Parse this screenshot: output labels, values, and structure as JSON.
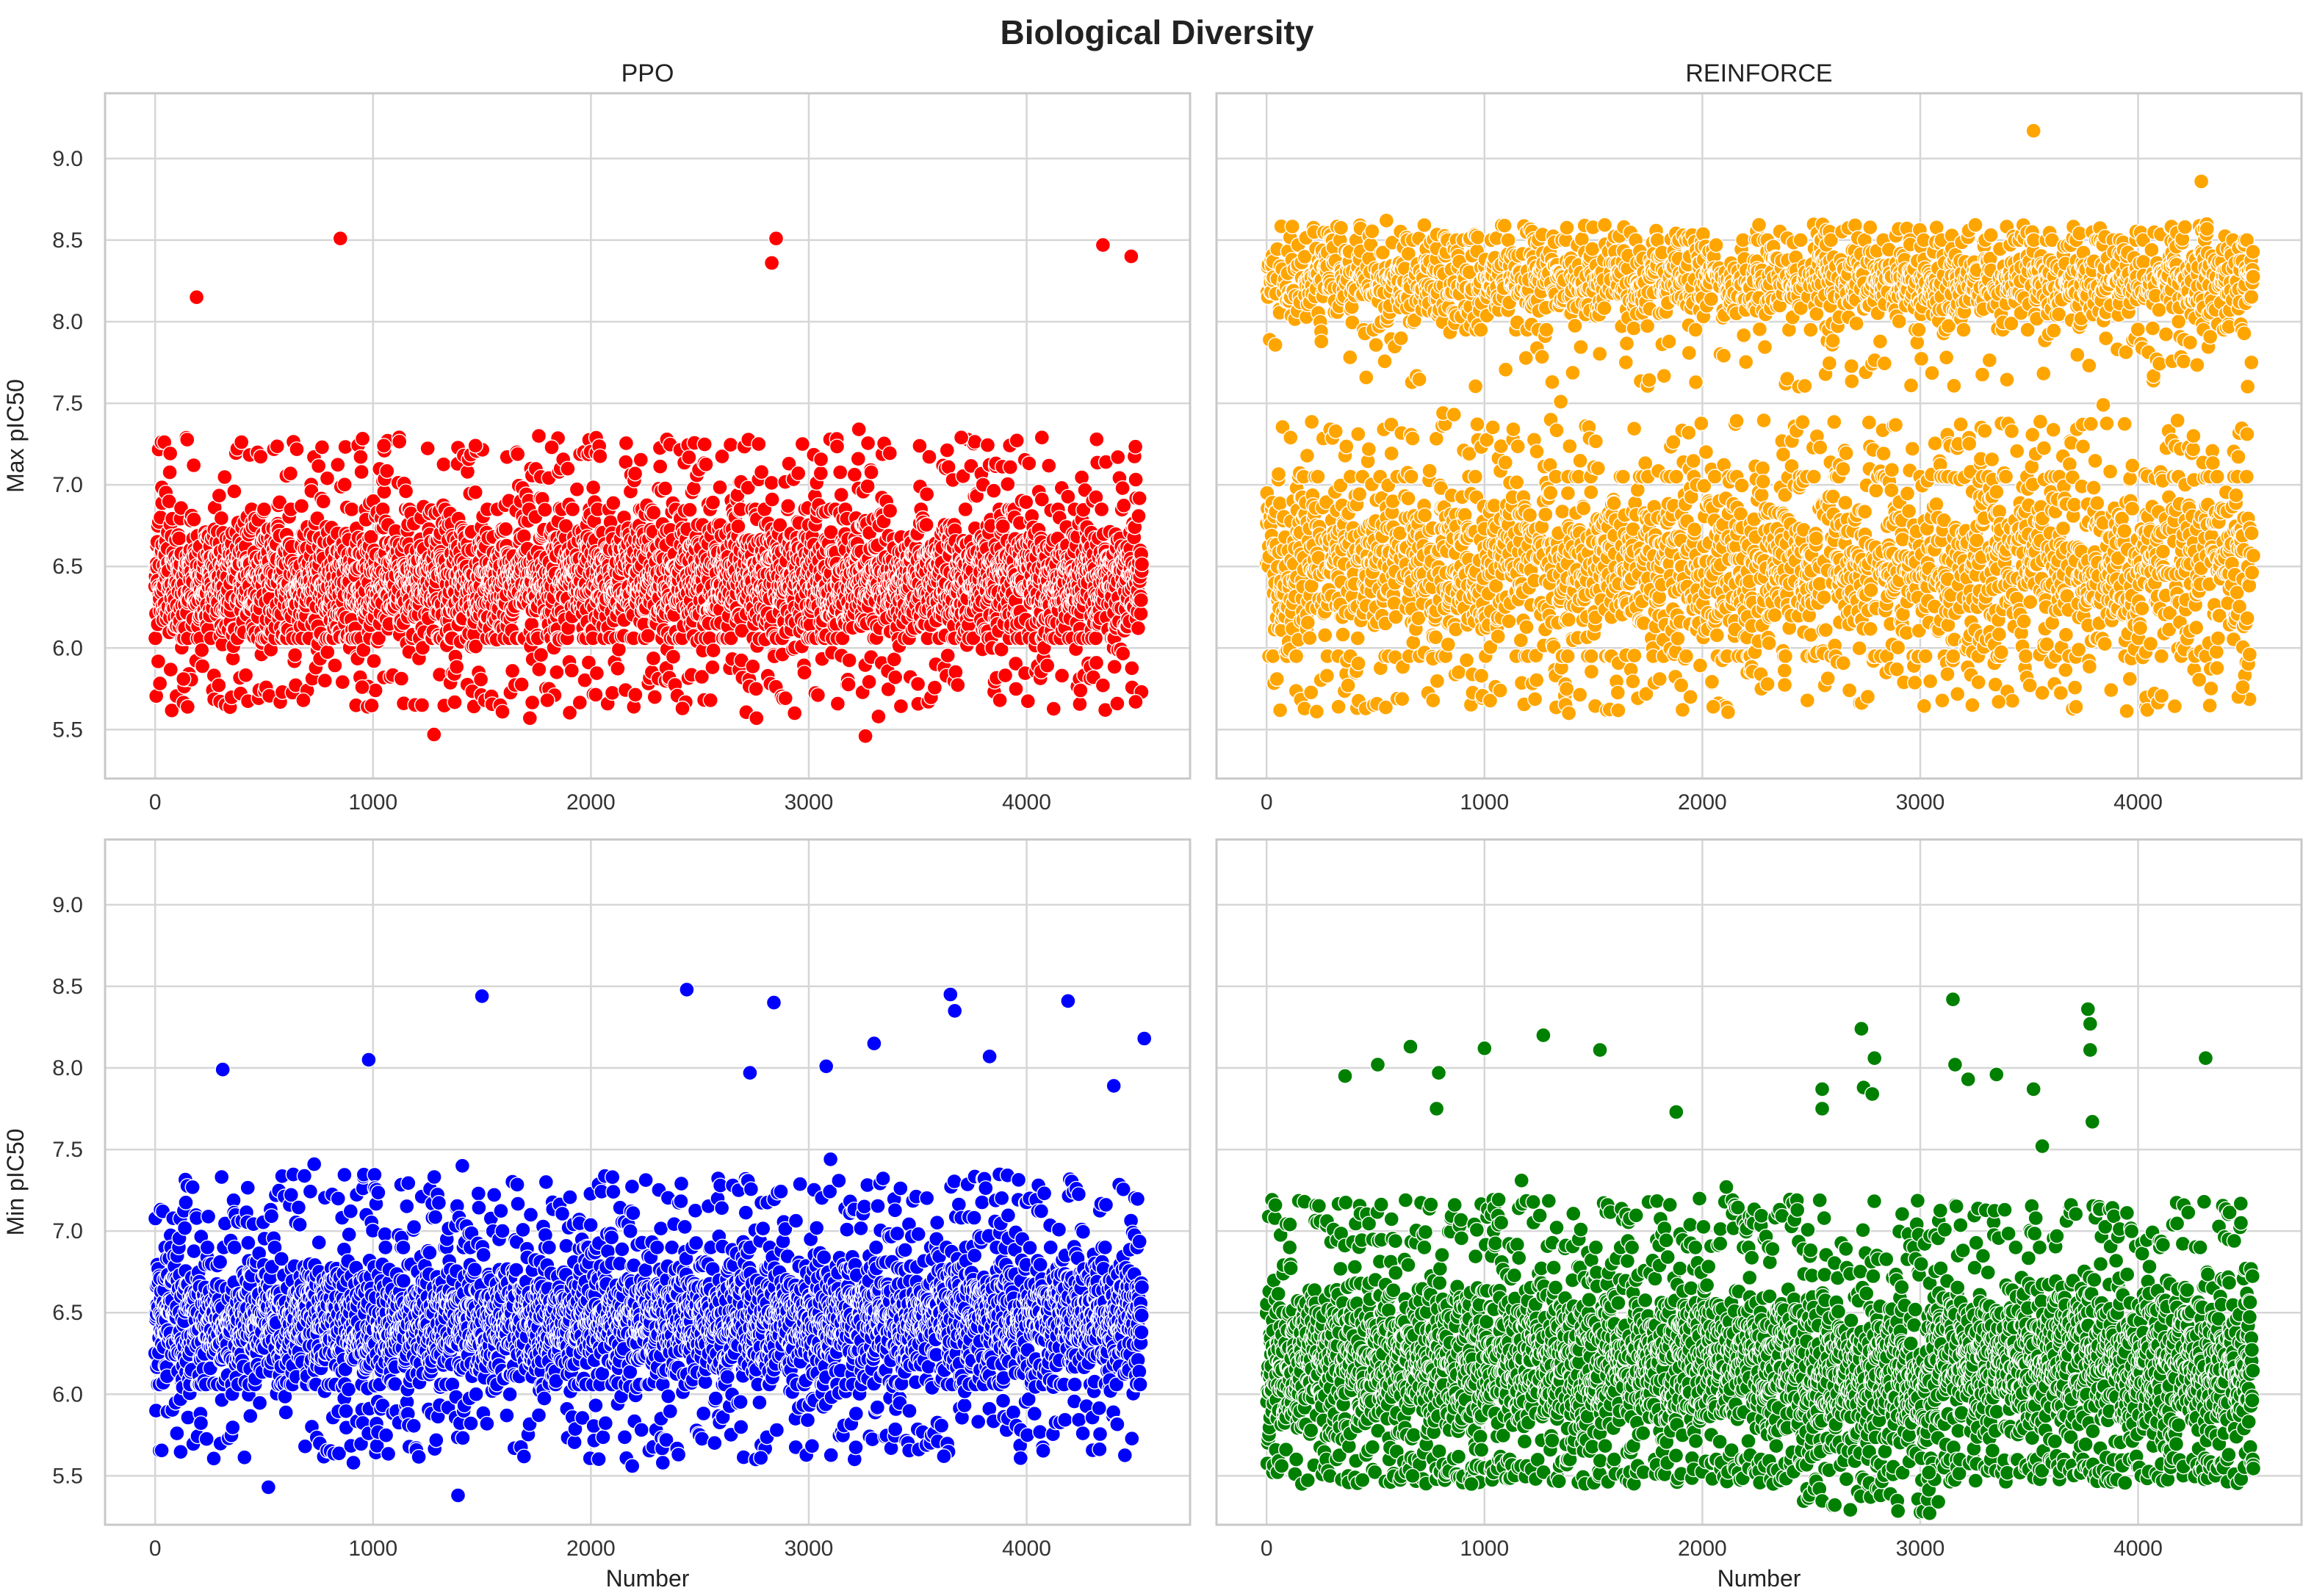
{
  "chart_data": {
    "title": "Biological Diversity",
    "type": "scatter",
    "x_range": [
      -230,
      4750
    ],
    "y_range": [
      5.2,
      9.4
    ],
    "x_ticks": [
      0,
      1000,
      2000,
      3000,
      4000
    ],
    "x_tick_labels": [
      "0",
      "1000",
      "2000",
      "3000",
      "4000"
    ],
    "y_ticks": [
      5.5,
      6.0,
      6.5,
      7.0,
      7.5,
      8.0,
      8.5,
      9.0
    ],
    "y_tick_labels": [
      "5.5",
      "6.0",
      "6.5",
      "7.0",
      "7.5",
      "8.0",
      "8.5",
      "9.0"
    ],
    "n_points": 4530,
    "grid": true,
    "panels": [
      {
        "id": "ppo-max",
        "title": "PPO",
        "ylabel": "Max pIC50",
        "xlabel": "",
        "color": "#ff0000",
        "bulk": {
          "center": 6.42,
          "sd": 0.19,
          "min": 6.06,
          "max": 6.85,
          "scatter_low": 5.6,
          "scatter_high": 7.3
        },
        "highlighted_points": [
          {
            "x": 190,
            "y": 8.15
          },
          {
            "x": 850,
            "y": 8.51
          },
          {
            "x": 2830,
            "y": 8.36
          },
          {
            "x": 2850,
            "y": 8.51
          },
          {
            "x": 4350,
            "y": 8.47
          },
          {
            "x": 4480,
            "y": 8.4
          },
          {
            "x": 1280,
            "y": 5.47
          },
          {
            "x": 3260,
            "y": 5.46
          },
          {
            "x": 3320,
            "y": 5.58
          },
          {
            "x": 1720,
            "y": 5.57
          },
          {
            "x": 2760,
            "y": 5.57
          },
          {
            "x": 4500,
            "y": 5.67
          },
          {
            "x": 680,
            "y": 5.68
          },
          {
            "x": 1800,
            "y": 5.68
          },
          {
            "x": 2420,
            "y": 5.63
          },
          {
            "x": 130,
            "y": 5.81
          },
          {
            "x": 950,
            "y": 5.76
          },
          {
            "x": 1050,
            "y": 7.24
          },
          {
            "x": 1470,
            "y": 7.24
          },
          {
            "x": 1820,
            "y": 7.23
          },
          {
            "x": 2770,
            "y": 7.25
          },
          {
            "x": 3230,
            "y": 7.34
          },
          {
            "x": 3700,
            "y": 7.29
          },
          {
            "x": 4070,
            "y": 7.29
          }
        ]
      },
      {
        "id": "reinforce-max",
        "title": "REINFORCE",
        "ylabel": "",
        "xlabel": "",
        "color": "#ffa500",
        "bulk": {
          "center": 6.5,
          "sd": 0.28,
          "min": 5.95,
          "max": 7.05,
          "scatter_low": 5.6,
          "scatter_high": 7.4
        },
        "upper_band": {
          "center": 8.25,
          "sd": 0.13,
          "min": 7.95,
          "max": 8.5,
          "scatter_low": 7.6,
          "scatter_high": 8.6
        },
        "highlighted_points": [
          {
            "x": 3520,
            "y": 9.17
          },
          {
            "x": 4290,
            "y": 8.86
          },
          {
            "x": 810,
            "y": 7.44
          },
          {
            "x": 860,
            "y": 7.43
          },
          {
            "x": 1350,
            "y": 7.51
          },
          {
            "x": 3840,
            "y": 7.49
          },
          {
            "x": 230,
            "y": 5.61
          },
          {
            "x": 2050,
            "y": 5.64
          },
          {
            "x": 330,
            "y": 5.64
          },
          {
            "x": 3360,
            "y": 5.67
          },
          {
            "x": 4460,
            "y": 5.7
          },
          {
            "x": 4520,
            "y": 7.75
          },
          {
            "x": 550,
            "y": 8.62
          },
          {
            "x": 4480,
            "y": 5.76
          }
        ]
      },
      {
        "id": "ppo-min",
        "title": "",
        "ylabel": "Min pIC50",
        "xlabel": "Number",
        "color": "#0000ff",
        "bulk": {
          "center": 6.45,
          "sd": 0.19,
          "min": 6.06,
          "max": 6.9,
          "scatter_low": 5.6,
          "scatter_high": 7.35
        },
        "highlighted_points": [
          {
            "x": 310,
            "y": 7.99
          },
          {
            "x": 980,
            "y": 8.05
          },
          {
            "x": 1500,
            "y": 8.44
          },
          {
            "x": 2440,
            "y": 8.48
          },
          {
            "x": 2730,
            "y": 7.97
          },
          {
            "x": 2840,
            "y": 8.4
          },
          {
            "x": 3080,
            "y": 8.01
          },
          {
            "x": 3300,
            "y": 8.15
          },
          {
            "x": 3650,
            "y": 8.45
          },
          {
            "x": 3670,
            "y": 8.35
          },
          {
            "x": 3830,
            "y": 8.07
          },
          {
            "x": 4190,
            "y": 8.41
          },
          {
            "x": 4400,
            "y": 7.89
          },
          {
            "x": 4540,
            "y": 8.18
          },
          {
            "x": 520,
            "y": 5.43
          },
          {
            "x": 1390,
            "y": 5.38
          },
          {
            "x": 910,
            "y": 5.58
          },
          {
            "x": 2190,
            "y": 5.56
          },
          {
            "x": 2330,
            "y": 5.58
          },
          {
            "x": 2780,
            "y": 5.61
          },
          {
            "x": 3620,
            "y": 5.62
          },
          {
            "x": 3100,
            "y": 7.44
          },
          {
            "x": 1410,
            "y": 7.4
          },
          {
            "x": 730,
            "y": 7.41
          }
        ]
      },
      {
        "id": "reinforce-min",
        "title": "",
        "ylabel": "",
        "xlabel": "Number",
        "color": "#008000",
        "bulk": {
          "center": 6.2,
          "sd": 0.26,
          "min": 5.6,
          "max": 6.9,
          "scatter_low": 5.45,
          "scatter_high": 7.2
        },
        "highlighted_points": [
          {
            "x": 360,
            "y": 7.95
          },
          {
            "x": 510,
            "y": 8.02
          },
          {
            "x": 660,
            "y": 8.13
          },
          {
            "x": 790,
            "y": 7.97
          },
          {
            "x": 780,
            "y": 7.75
          },
          {
            "x": 1000,
            "y": 8.12
          },
          {
            "x": 1270,
            "y": 8.2
          },
          {
            "x": 1530,
            "y": 8.11
          },
          {
            "x": 1880,
            "y": 7.73
          },
          {
            "x": 2550,
            "y": 7.87
          },
          {
            "x": 2550,
            "y": 7.75
          },
          {
            "x": 2730,
            "y": 8.24
          },
          {
            "x": 2740,
            "y": 7.88
          },
          {
            "x": 2780,
            "y": 7.84
          },
          {
            "x": 2790,
            "y": 8.06
          },
          {
            "x": 3150,
            "y": 8.42
          },
          {
            "x": 3160,
            "y": 8.02
          },
          {
            "x": 3220,
            "y": 7.93
          },
          {
            "x": 3350,
            "y": 7.96
          },
          {
            "x": 3520,
            "y": 7.87
          },
          {
            "x": 3560,
            "y": 7.52
          },
          {
            "x": 3770,
            "y": 8.36
          },
          {
            "x": 3780,
            "y": 8.27
          },
          {
            "x": 3780,
            "y": 8.11
          },
          {
            "x": 3790,
            "y": 7.67
          },
          {
            "x": 4310,
            "y": 8.06
          },
          {
            "x": 940,
            "y": 5.45
          },
          {
            "x": 670,
            "y": 5.5
          },
          {
            "x": 3040,
            "y": 5.52
          },
          {
            "x": 1170,
            "y": 7.31
          },
          {
            "x": 2110,
            "y": 7.27
          }
        ]
      }
    ]
  }
}
